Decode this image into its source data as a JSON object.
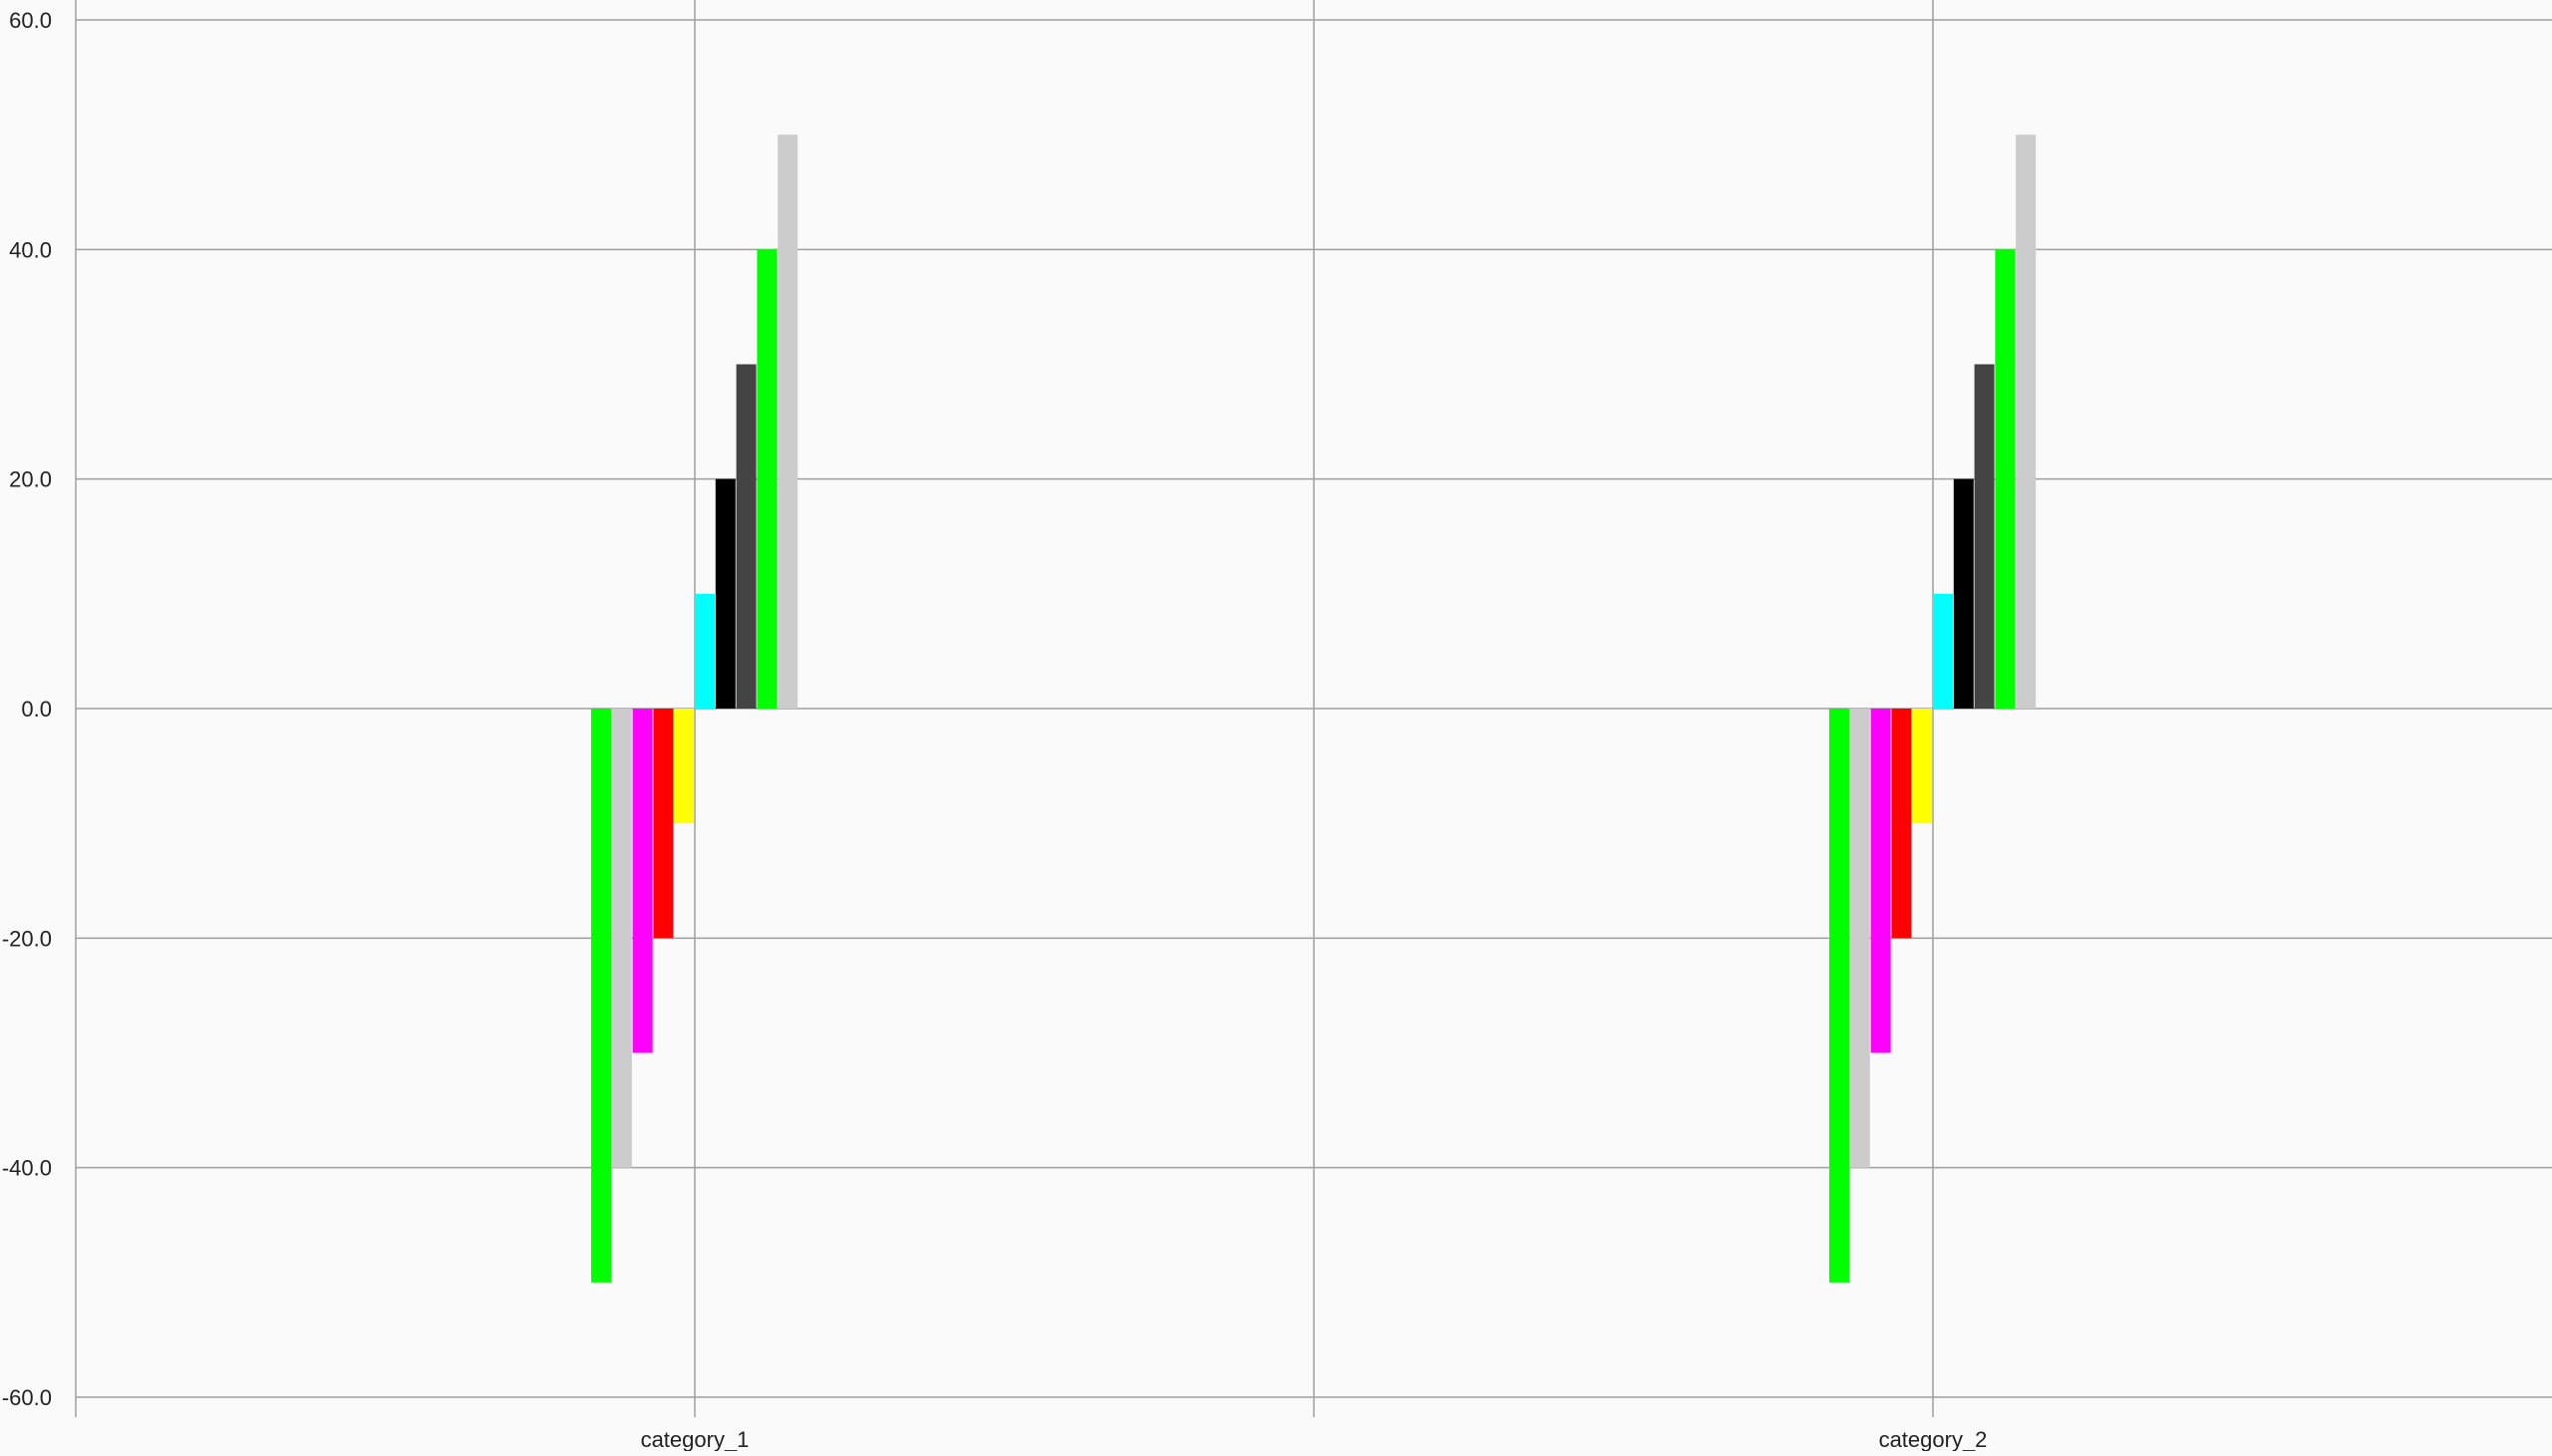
{
  "chart_data": {
    "type": "bar",
    "categories": [
      "category_1",
      "category_2"
    ],
    "series": [
      {
        "values": [
          -50,
          -50
        ],
        "color": "#00ff00"
      },
      {
        "values": [
          -40,
          -40
        ],
        "color": "#cccccc"
      },
      {
        "values": [
          -30,
          -30
        ],
        "color": "#ff00ff"
      },
      {
        "values": [
          -20,
          -20
        ],
        "color": "#ff0000"
      },
      {
        "values": [
          -10,
          -10
        ],
        "color": "#ffff00"
      },
      {
        "values": [
          10,
          10
        ],
        "color": "#00ffff"
      },
      {
        "values": [
          20,
          20
        ],
        "color": "#000000"
      },
      {
        "values": [
          30,
          30
        ],
        "color": "#444444"
      },
      {
        "values": [
          40,
          40
        ],
        "color": "#00ff00"
      },
      {
        "values": [
          50,
          50
        ],
        "color": "#cccccc"
      }
    ],
    "ylim": [
      -60,
      60
    ],
    "yticks": [
      "-60.0",
      "-40.0",
      "-20.0",
      "0.0",
      "20.0",
      "40.0",
      "60.0"
    ],
    "grid": true,
    "legend": "none",
    "title": "",
    "xlabel": "",
    "ylabel": ""
  },
  "colors": {
    "background": "#fafafa",
    "grid": "#a0a0a0",
    "text": "#222222"
  }
}
